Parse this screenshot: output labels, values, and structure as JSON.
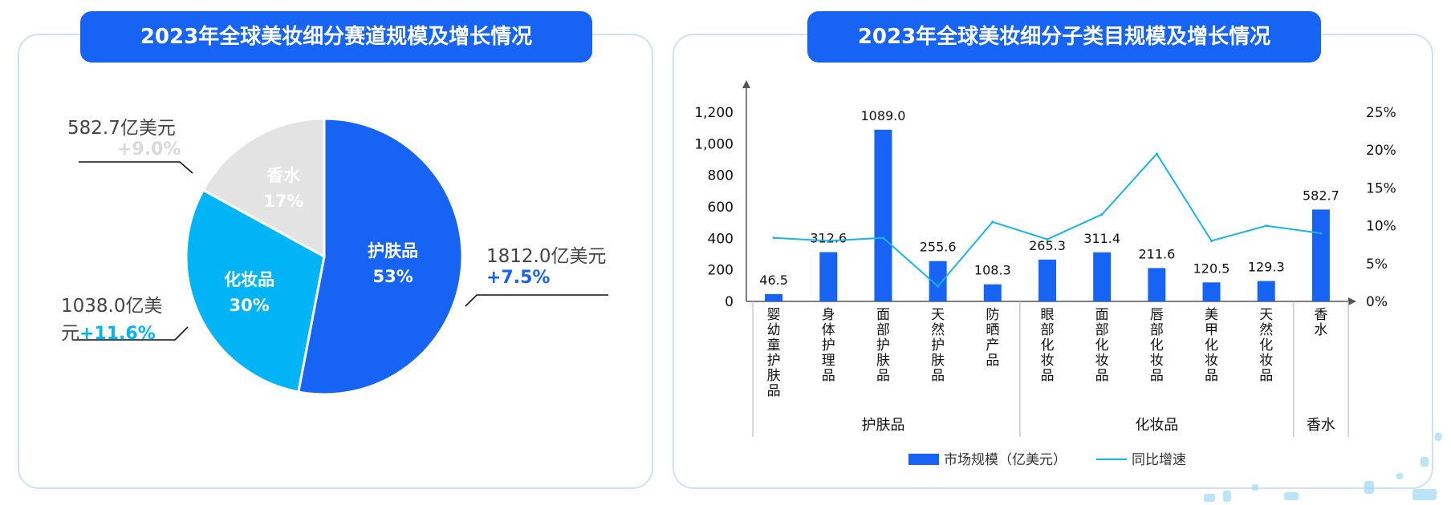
{
  "left": {
    "title": "2023年全球美妆细分赛道规模及增长情况",
    "colors": {
      "skincare": "#1763f4",
      "cosmetics": "#00b4f5",
      "fragrance": "#e3e3e3"
    },
    "callouts": {
      "fragrance": {
        "amount": "582.7亿美元",
        "growth": "+9.0%",
        "growth_color": "#d9d9d9"
      },
      "cosmetics": {
        "amount_line1": "1038.0亿美",
        "amount_line2": "元",
        "growth": "+11.6%",
        "growth_color": "#00b4f5"
      },
      "skincare": {
        "amount": "1812.0亿美元",
        "growth": "+7.5%",
        "growth_color": "#1763f4"
      }
    }
  },
  "right": {
    "title": "2023年全球美妆细分子类目规模及增长情况",
    "legend": {
      "bar": "市场规模（亿美元）",
      "line": "同比增速"
    },
    "colors": {
      "bar": "#1763f4",
      "line": "#1ab3e8"
    }
  },
  "chart_data": [
    {
      "type": "pie",
      "labels": [
        "护肤品",
        "化妆品",
        "香水"
      ],
      "values": [
        53,
        30,
        17
      ],
      "percent_labels": [
        "53%",
        "30%",
        "17%"
      ],
      "amounts": [
        1812.0,
        1038.0,
        582.7
      ],
      "growth": [
        7.5,
        11.6,
        9.0
      ]
    },
    {
      "type": "bar",
      "categories": [
        "婴幼童护肤品",
        "身体护理品",
        "面部护肤品",
        "天然护肤品",
        "防晒产品",
        "眼部化妆品",
        "面部化妆品",
        "唇部化妆品",
        "美甲化妆品",
        "天然化妆品",
        "香水"
      ],
      "groups": [
        {
          "name": "护肤品",
          "count": 5
        },
        {
          "name": "化妆品",
          "count": 5
        },
        {
          "name": "香水",
          "count": 1
        }
      ],
      "series": [
        {
          "name": "市场规模（亿美元）",
          "type": "bar",
          "values": [
            46.5,
            312.6,
            1089.0,
            255.6,
            108.3,
            265.3,
            311.4,
            211.6,
            120.5,
            129.3,
            582.7
          ],
          "labels": [
            "46.5",
            "312.6",
            "1089.0",
            "255.6",
            "108.3",
            "265.3",
            "311.4",
            "211.6",
            "120.5",
            "129.3",
            "582.7"
          ]
        },
        {
          "name": "同比增速",
          "type": "line",
          "values": [
            8.4,
            8.0,
            8.4,
            2.0,
            10.5,
            8.2,
            11.5,
            19.5,
            8.0,
            10.0,
            9.0
          ]
        }
      ],
      "y_left": {
        "ylim": [
          0,
          1200
        ],
        "ticks": [
          0,
          200,
          400,
          600,
          800,
          1000,
          1200
        ],
        "tick_labels": [
          "0",
          "200",
          "400",
          "600",
          "800",
          "1,000",
          "1,200"
        ]
      },
      "y_right": {
        "ylim": [
          0,
          25
        ],
        "ticks": [
          0,
          5,
          10,
          15,
          20,
          25
        ],
        "tick_labels": [
          "0%",
          "5%",
          "10%",
          "15%",
          "20%",
          "25%"
        ]
      }
    }
  ]
}
